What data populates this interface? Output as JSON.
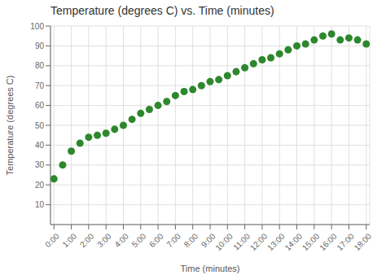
{
  "chart_data": {
    "type": "scatter",
    "title": "Temperature (degrees C) vs. Time (minutes)",
    "xlabel": "Time (minutes)",
    "ylabel": "Temperature (degrees C)",
    "x": [
      0,
      0.5,
      1.0,
      1.5,
      2.0,
      2.5,
      3.0,
      3.5,
      4.0,
      4.5,
      5.0,
      5.5,
      6.0,
      6.5,
      7.0,
      7.5,
      8.0,
      8.5,
      9.0,
      9.5,
      10.0,
      10.5,
      11.0,
      11.5,
      12.0,
      12.5,
      13.0,
      13.5,
      14.0,
      14.5,
      15.0,
      15.5,
      16.0,
      16.5,
      17.0,
      17.5,
      18.0
    ],
    "values": [
      23,
      30,
      37,
      41,
      44,
      45,
      46,
      48,
      50,
      53,
      56,
      58,
      60,
      62,
      65,
      67,
      68,
      70,
      72,
      73,
      75,
      77,
      79,
      81,
      83,
      84,
      86,
      88,
      90,
      91,
      93,
      95,
      96,
      93,
      94,
      93,
      91
    ],
    "color": "#2d882d",
    "xlim": [
      -0.2,
      18.2
    ],
    "ylim": [
      0,
      100
    ],
    "xticks": [
      {
        "value": 0,
        "label": "0:00"
      },
      {
        "value": 1,
        "label": "1:00"
      },
      {
        "value": 2,
        "label": "2:00"
      },
      {
        "value": 3,
        "label": "3:00"
      },
      {
        "value": 4,
        "label": "4:00"
      },
      {
        "value": 5,
        "label": "5:00"
      },
      {
        "value": 6,
        "label": "6:00"
      },
      {
        "value": 7,
        "label": "7:00"
      },
      {
        "value": 8,
        "label": "8:00"
      },
      {
        "value": 9,
        "label": "9:00"
      },
      {
        "value": 10,
        "label": "10:00"
      },
      {
        "value": 11,
        "label": "11:00"
      },
      {
        "value": 12,
        "label": "12:00"
      },
      {
        "value": 13,
        "label": "13:00"
      },
      {
        "value": 14,
        "label": "14:00"
      },
      {
        "value": 15,
        "label": "15:00"
      },
      {
        "value": 16,
        "label": "16:00"
      },
      {
        "value": 17,
        "label": "17:00"
      },
      {
        "value": 18,
        "label": "18:00"
      }
    ],
    "yticks": [
      10,
      20,
      30,
      40,
      50,
      60,
      70,
      80,
      90,
      100
    ],
    "grid": true
  }
}
